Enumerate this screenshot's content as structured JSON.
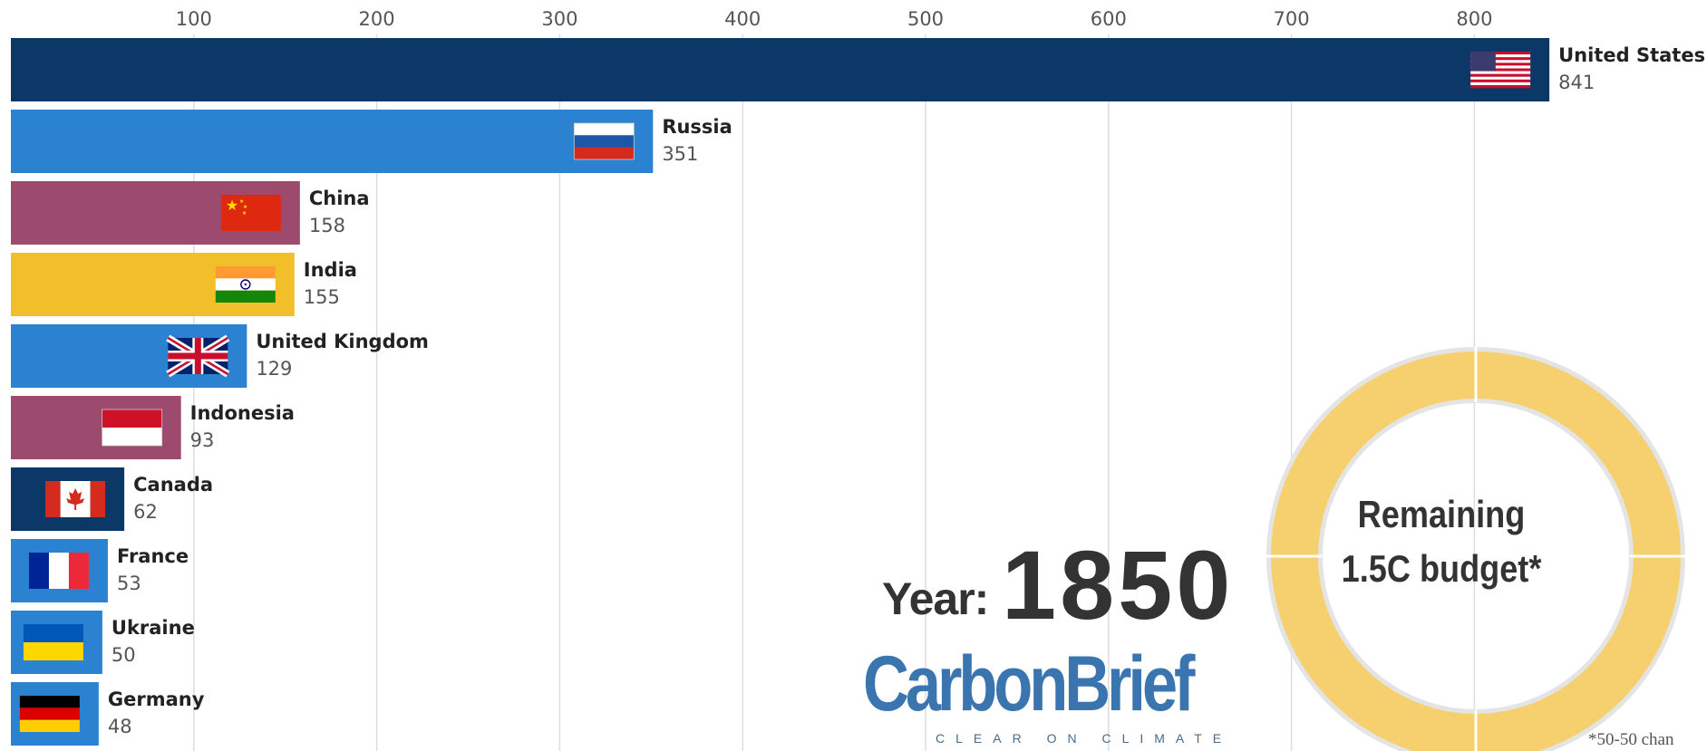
{
  "chart_data": {
    "type": "bar",
    "orientation": "horizontal",
    "xlim": [
      0,
      850
    ],
    "x_ticks": [
      100,
      200,
      300,
      400,
      500,
      600,
      700,
      800
    ],
    "grid": true,
    "categories": [
      "United States",
      "Russia",
      "China",
      "India",
      "United Kingdom",
      "Indonesia",
      "Canada",
      "France",
      "Ukraine",
      "Germany"
    ],
    "values": [
      841,
      351,
      158,
      155,
      129,
      93,
      62,
      53,
      50,
      48
    ],
    "colors": [
      "#0b3866",
      "#2a82d0",
      "#9c4a6e",
      "#f0bf2a",
      "#2a82d0",
      "#9c4a6e",
      "#0b3866",
      "#2a82d0",
      "#2a82d0",
      "#2a82d0"
    ],
    "flags": [
      "us-flag-icon",
      "russia-flag-icon",
      "china-flag-icon",
      "india-flag-icon",
      "uk-flag-icon",
      "indonesia-flag-icon",
      "canada-flag-icon",
      "france-flag-icon",
      "ukraine-flag-icon",
      "germany-flag-icon"
    ]
  },
  "year": {
    "label": "Year:",
    "value": "1850"
  },
  "logo": {
    "name": "CarbonBrief",
    "tagline": "CLEAR ON CLIMATE",
    "color": "#3a75b0"
  },
  "budget": {
    "line1": "Remaining",
    "line2": "1.5C budget*",
    "ring_color": "#f6d06e",
    "border_color": "#e4e4e4"
  },
  "footnote": "*50-50 chan"
}
